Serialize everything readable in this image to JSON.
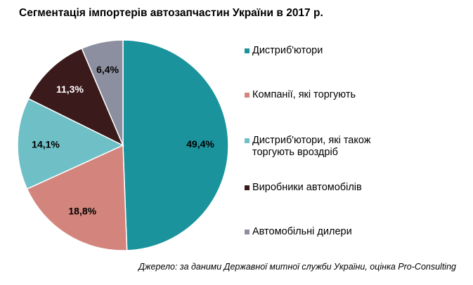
{
  "chart_data": {
    "type": "pie",
    "title": "Сегментація імпортерів автозапчастин України в 2017 р.",
    "slices": [
      {
        "label": "Дистриб'ютори",
        "value": 49.4,
        "display": "49,4%",
        "color": "#1b939c",
        "text_color": "#000000"
      },
      {
        "label": "Компанії, які торгують",
        "value": 18.8,
        "display": "18,8%",
        "color": "#d3857d",
        "text_color": "#000000"
      },
      {
        "label": "Дистриб'ютори, які також\nторгують вроздріб",
        "value": 14.1,
        "display": "14,1%",
        "color": "#6fc0c6",
        "text_color": "#000000"
      },
      {
        "label": "Виробники автомобілів",
        "value": 11.3,
        "display": "11,3%",
        "color": "#3b1a1b",
        "text_color": "#ffffff"
      },
      {
        "label": "Автомобільні дилери",
        "value": 6.4,
        "display": "6,4%",
        "color": "#8c8fa0",
        "text_color": "#000000"
      }
    ],
    "legend_position": "right"
  },
  "source_note": "Джерело: за даними Державної митної служби України, оцінка Pro-Consulting"
}
